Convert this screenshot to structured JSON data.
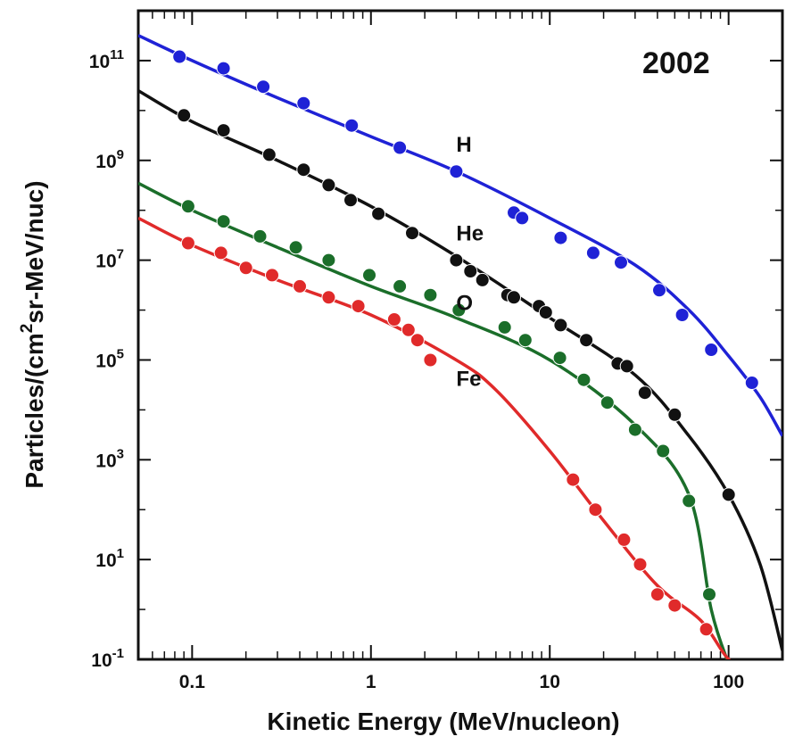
{
  "chart_data": {
    "type": "scatter",
    "title": "2002",
    "xlabel": "Kinetic Energy  (MeV/nucleon)",
    "ylabel_pre": "Particles/(cm",
    "ylabel_sup": "2",
    "ylabel_post": "sr-MeV/nuc)",
    "xscale": "log",
    "yscale": "log",
    "xlim": [
      0.05,
      200
    ],
    "ylim": [
      0.1,
      1000000000000
    ],
    "x_ticks": [
      {
        "value": 0.1,
        "label": "0.1"
      },
      {
        "value": 1,
        "label": "1"
      },
      {
        "value": 10,
        "label": "10"
      },
      {
        "value": 100,
        "label": "100"
      }
    ],
    "y_ticks": [
      {
        "value": 0.1,
        "base": "10",
        "exp": "-1"
      },
      {
        "value": 10,
        "base": "10",
        "exp": "1"
      },
      {
        "value": 1000,
        "base": "10",
        "exp": "3"
      },
      {
        "value": 100000,
        "base": "10",
        "exp": "5"
      },
      {
        "value": 10000000,
        "base": "10",
        "exp": "7"
      },
      {
        "value": 1000000000,
        "base": "10",
        "exp": "9"
      },
      {
        "value": 100000000000,
        "base": "10",
        "exp": "11"
      }
    ],
    "grid": false,
    "legend": "inline labels",
    "series": [
      {
        "name": "H",
        "color": "#1f22d6",
        "label_at": [
          3.0,
          1500000000
        ],
        "points": [
          [
            0.085,
            120000000000
          ],
          [
            0.15,
            70000000000
          ],
          [
            0.25,
            30000000000
          ],
          [
            0.42,
            14000000000
          ],
          [
            0.78,
            5000000000
          ],
          [
            1.45,
            1800000000
          ],
          [
            3.0,
            600000000
          ],
          [
            6.3,
            90000000
          ],
          [
            7.0,
            70000000
          ],
          [
            11.5,
            28000000
          ],
          [
            17.5,
            14000000
          ],
          [
            25,
            9000000
          ],
          [
            41,
            2500000
          ],
          [
            55,
            800000
          ],
          [
            80,
            160000
          ],
          [
            135,
            35000
          ]
        ],
        "fit": [
          [
            0.05,
            320000000000
          ],
          [
            0.1,
            100000000000
          ],
          [
            0.3,
            18000000000
          ],
          [
            1,
            3000000000
          ],
          [
            3,
            600000000
          ],
          [
            10,
            70000000
          ],
          [
            30,
            8000000
          ],
          [
            60,
            1000000
          ],
          [
            100,
            120000
          ],
          [
            150,
            18000
          ],
          [
            200,
            3000
          ]
        ]
      },
      {
        "name": "He",
        "color": "#111111",
        "label_at": [
          3.0,
          25000000
        ],
        "points": [
          [
            0.09,
            8000000000
          ],
          [
            0.15,
            4000000000
          ],
          [
            0.27,
            1300000000
          ],
          [
            0.42,
            650000000
          ],
          [
            0.58,
            320000000
          ],
          [
            0.77,
            160000000
          ],
          [
            1.1,
            85000000
          ],
          [
            1.7,
            35000000
          ],
          [
            3.0,
            10000000
          ],
          [
            3.6,
            6000000
          ],
          [
            4.2,
            4000000
          ],
          [
            5.8,
            2000000
          ],
          [
            6.3,
            1800000
          ],
          [
            8.7,
            1200000
          ],
          [
            9.5,
            900000
          ],
          [
            11.5,
            500000
          ],
          [
            16,
            250000
          ],
          [
            24,
            85000
          ],
          [
            27,
            75000
          ],
          [
            34,
            22000
          ],
          [
            50,
            8000
          ],
          [
            100,
            200
          ]
        ],
        "fit": [
          [
            0.05,
            25000000000
          ],
          [
            0.1,
            6000000000
          ],
          [
            0.3,
            1000000000
          ],
          [
            1,
            120000000
          ],
          [
            3,
            12000000
          ],
          [
            10,
            700000
          ],
          [
            30,
            50000
          ],
          [
            60,
            3000
          ],
          [
            100,
            200
          ],
          [
            150,
            8
          ],
          [
            200,
            0.15
          ]
        ]
      },
      {
        "name": "O",
        "color": "#1b6e2a",
        "label_at": [
          3.0,
          1000000
        ],
        "points": [
          [
            0.095,
            120000000
          ],
          [
            0.15,
            60000000
          ],
          [
            0.24,
            30000000
          ],
          [
            0.38,
            18000000
          ],
          [
            0.58,
            10000000
          ],
          [
            0.98,
            5000000
          ],
          [
            1.45,
            3000000
          ],
          [
            2.15,
            2000000
          ],
          [
            3.1,
            1000000
          ],
          [
            5.6,
            450000
          ],
          [
            7.3,
            250000
          ],
          [
            11.4,
            110000
          ],
          [
            15.5,
            40000
          ],
          [
            21,
            14000
          ],
          [
            30,
            4000
          ],
          [
            43,
            1500
          ],
          [
            60,
            150
          ],
          [
            78,
            2
          ]
        ],
        "fit": [
          [
            0.05,
            350000000
          ],
          [
            0.1,
            100000000
          ],
          [
            0.3,
            18000000
          ],
          [
            1,
            3000000
          ],
          [
            3,
            700000
          ],
          [
            10,
            100000
          ],
          [
            30,
            5000
          ],
          [
            60,
            200
          ],
          [
            80,
            1
          ],
          [
            100,
            0.08
          ]
        ]
      },
      {
        "name": "Fe",
        "color": "#e02a2a",
        "label_at": [
          3.0,
          30000
        ],
        "points": [
          [
            0.095,
            22000000
          ],
          [
            0.145,
            14000000
          ],
          [
            0.2,
            7000000
          ],
          [
            0.28,
            5000000
          ],
          [
            0.4,
            3000000
          ],
          [
            0.58,
            1800000
          ],
          [
            0.85,
            1200000
          ],
          [
            1.35,
            650000
          ],
          [
            1.62,
            400000
          ],
          [
            1.82,
            250000
          ],
          [
            2.15,
            100000
          ],
          [
            13.5,
            400
          ],
          [
            18,
            100
          ],
          [
            26,
            25
          ],
          [
            32,
            8
          ],
          [
            40,
            2
          ],
          [
            50,
            1.2
          ],
          [
            75,
            0.4
          ]
        ],
        "fit": [
          [
            0.05,
            70000000
          ],
          [
            0.1,
            20000000
          ],
          [
            0.3,
            4000000
          ],
          [
            1,
            800000
          ],
          [
            3,
            100000
          ],
          [
            5,
            25000
          ],
          [
            10,
            1500
          ],
          [
            20,
            60
          ],
          [
            40,
            3
          ],
          [
            70,
            0.6
          ],
          [
            100,
            0.1
          ],
          [
            140,
            0.05
          ]
        ]
      }
    ]
  }
}
